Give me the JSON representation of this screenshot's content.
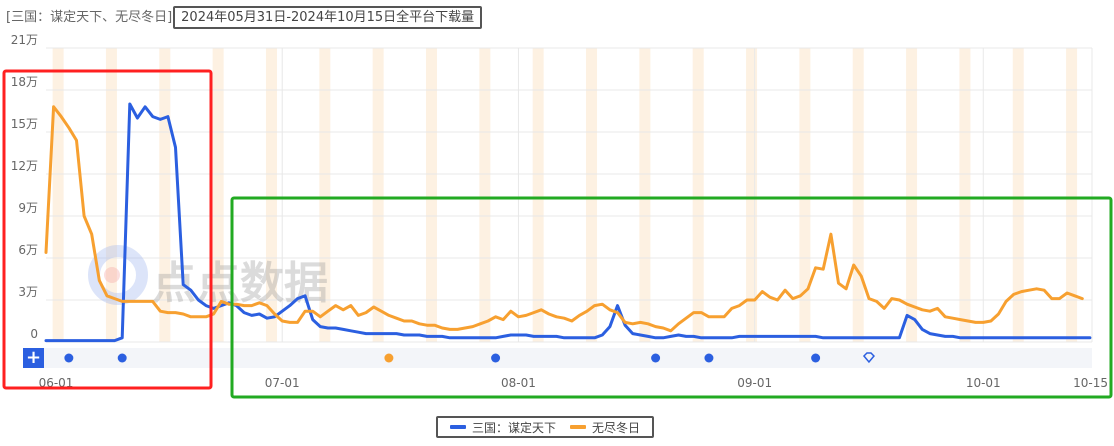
{
  "header": {
    "prefix": "[三国：谋定天下、无尽冬日]",
    "highlight": "2024年05月31日-2024年10月15日全平台下载量"
  },
  "legend": [
    {
      "label": "三国：谋定天下",
      "color": "#2b5fe0"
    },
    {
      "label": "无尽冬日",
      "color": "#f7a030"
    }
  ],
  "watermark": "点点数据",
  "controls": {
    "add_label": "+"
  },
  "annotations": {
    "red_box": {
      "color": "#ff2020"
    },
    "green_box": {
      "color": "#22aa22"
    }
  },
  "event_markers": [
    {
      "date": "06-03",
      "type": "dot",
      "color": "#2b5fe0"
    },
    {
      "date": "06-10",
      "type": "dot",
      "color": "#2b5fe0"
    },
    {
      "date": "07-15",
      "type": "dot",
      "color": "#f7a030"
    },
    {
      "date": "07-29",
      "type": "dot",
      "color": "#2b5fe0"
    },
    {
      "date": "08-19",
      "type": "dot",
      "color": "#2b5fe0"
    },
    {
      "date": "08-26",
      "type": "dot",
      "color": "#2b5fe0"
    },
    {
      "date": "09-09",
      "type": "dot",
      "color": "#2b5fe0"
    },
    {
      "date": "09-16",
      "type": "diamond",
      "color": "#2b5fe0"
    }
  ],
  "chart_data": {
    "type": "line",
    "title": "2024年05月31日-2024年10月15日全平台下载量",
    "xlabel": "",
    "ylabel": "",
    "x_start": "2024-05-31",
    "x_end": "2024-10-15",
    "x_tick_labels": [
      "06-01",
      "07-01",
      "08-01",
      "09-01",
      "10-01",
      "10-15"
    ],
    "y_tick_labels": [
      "0",
      "3万",
      "6万",
      "9万",
      "12万",
      "15万",
      "18万",
      "21万"
    ],
    "ylim": [
      0,
      210000
    ],
    "unit": "万",
    "grid": true,
    "weekend_shading": true,
    "legend_position": "bottom",
    "series": [
      {
        "name": "三国：谋定天下",
        "color": "#2b5fe0",
        "values_wan": [
          0.1,
          0.1,
          0.1,
          0.1,
          0.1,
          0.1,
          0.1,
          0.1,
          0.1,
          0.1,
          0.3,
          17.0,
          16.0,
          16.8,
          16.1,
          15.9,
          16.1,
          13.9,
          4.1,
          3.7,
          3.0,
          2.6,
          2.4,
          2.6,
          2.8,
          2.6,
          2.1,
          1.9,
          2.0,
          1.7,
          1.8,
          2.2,
          2.6,
          3.1,
          3.3,
          1.6,
          1.1,
          1.0,
          1.0,
          0.9,
          0.8,
          0.7,
          0.6,
          0.6,
          0.6,
          0.6,
          0.6,
          0.5,
          0.5,
          0.5,
          0.4,
          0.4,
          0.4,
          0.3,
          0.3,
          0.3,
          0.3,
          0.3,
          0.3,
          0.3,
          0.4,
          0.5,
          0.5,
          0.5,
          0.4,
          0.4,
          0.4,
          0.4,
          0.3,
          0.3,
          0.3,
          0.3,
          0.3,
          0.5,
          1.1,
          2.6,
          1.2,
          0.6,
          0.5,
          0.4,
          0.3,
          0.3,
          0.4,
          0.5,
          0.4,
          0.4,
          0.3,
          0.3,
          0.3,
          0.3,
          0.3,
          0.4,
          0.4,
          0.4,
          0.4,
          0.4,
          0.4,
          0.4,
          0.4,
          0.4,
          0.4,
          0.4,
          0.3,
          0.3,
          0.3,
          0.3,
          0.3,
          0.3,
          0.3,
          0.3,
          0.3,
          0.3,
          0.3,
          1.9,
          1.6,
          0.9,
          0.6,
          0.5,
          0.4,
          0.4,
          0.3,
          0.3,
          0.3,
          0.3,
          0.3,
          0.3,
          0.3,
          0.3,
          0.3,
          0.3,
          0.3,
          0.3,
          0.3,
          0.3,
          0.3,
          0.3,
          0.3,
          0.3
        ]
      },
      {
        "name": "无尽冬日",
        "color": "#f7a030",
        "values_wan": [
          6.4,
          16.8,
          16.1,
          15.3,
          14.4,
          9.0,
          7.7,
          4.4,
          3.3,
          3.1,
          2.9,
          2.9,
          2.9,
          2.9,
          2.9,
          2.2,
          2.1,
          2.1,
          2.0,
          1.8,
          1.8,
          1.8,
          2.0,
          2.9,
          2.7,
          2.7,
          2.6,
          2.6,
          2.8,
          2.6,
          2.0,
          1.5,
          1.4,
          1.4,
          2.2,
          2.2,
          1.8,
          2.2,
          2.6,
          2.3,
          2.6,
          1.9,
          2.1,
          2.5,
          2.2,
          1.9,
          1.7,
          1.5,
          1.5,
          1.3,
          1.2,
          1.2,
          1.0,
          0.9,
          0.9,
          1.0,
          1.1,
          1.3,
          1.5,
          1.8,
          1.6,
          2.2,
          1.8,
          1.9,
          2.1,
          2.3,
          2.0,
          1.8,
          1.7,
          1.5,
          1.9,
          2.2,
          2.6,
          2.7,
          2.3,
          2.1,
          1.4,
          1.3,
          1.4,
          1.3,
          1.1,
          1.0,
          0.8,
          1.3,
          1.7,
          2.1,
          2.1,
          1.8,
          1.8,
          1.8,
          2.4,
          2.6,
          3.0,
          3.0,
          3.6,
          3.2,
          3.0,
          3.7,
          3.1,
          3.3,
          3.8,
          5.3,
          5.2,
          7.7,
          4.2,
          3.8,
          5.5,
          4.7,
          3.1,
          2.9,
          2.4,
          3.1,
          3.0,
          2.7,
          2.5,
          2.3,
          2.2,
          2.4,
          1.8,
          1.7,
          1.6,
          1.5,
          1.4,
          1.4,
          1.5,
          2.0,
          2.9,
          3.4,
          3.6,
          3.7,
          3.8,
          3.7,
          3.1,
          3.1,
          3.5,
          3.3,
          3.1
        ]
      }
    ]
  }
}
